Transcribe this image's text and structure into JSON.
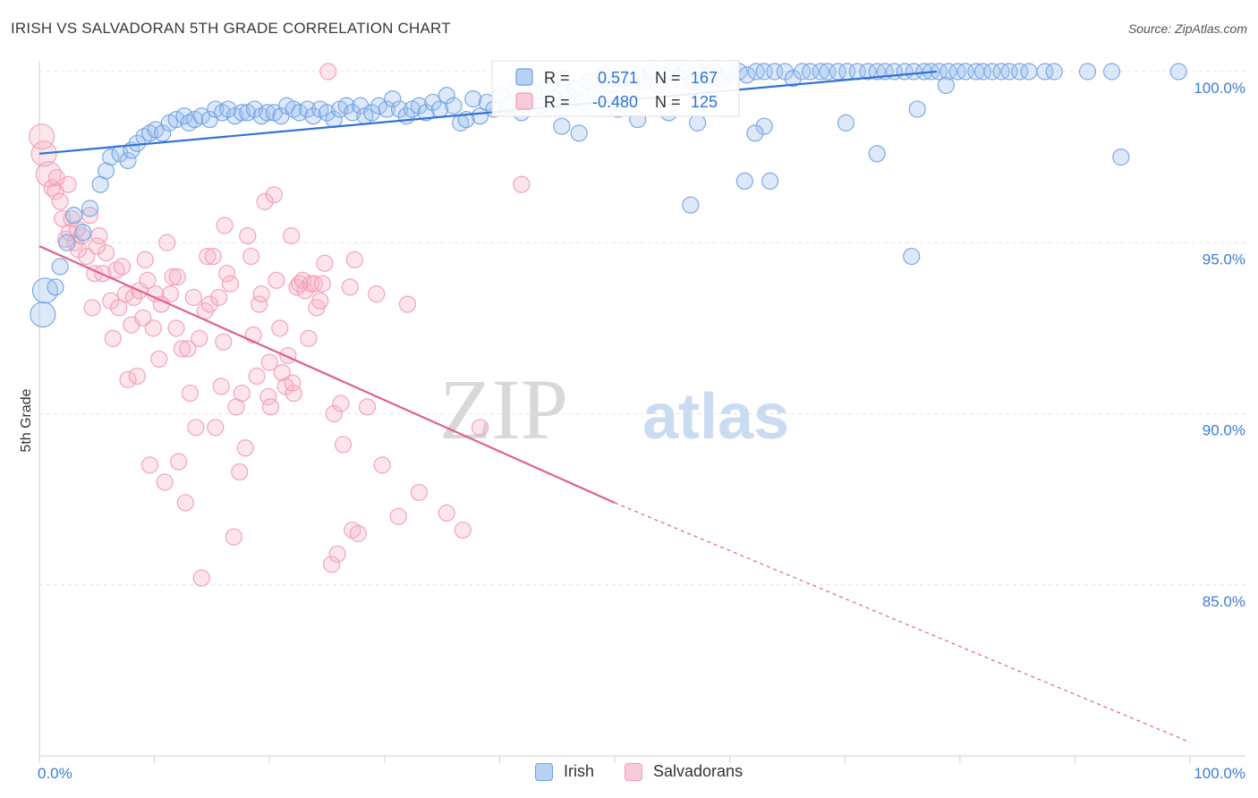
{
  "title": "IRISH VS SALVADORAN 5TH GRADE CORRELATION CHART",
  "source": "Source: ZipAtlas.com",
  "watermark": {
    "zip": "ZIP",
    "atlas": "atlas"
  },
  "chart_data": {
    "type": "scatter",
    "ylabel": "5th Grade",
    "xlim": [
      0,
      100
    ],
    "ylim": [
      80,
      100
    ],
    "x_tick_labels": [
      "0.0%",
      "100.0%"
    ],
    "y_ticks": [
      {
        "value": 100,
        "label": "100.0%"
      },
      {
        "value": 95,
        "label": "95.0%"
      },
      {
        "value": 90,
        "label": "90.0%"
      },
      {
        "value": 85,
        "label": "85.0%"
      }
    ],
    "grid": true,
    "legend_placement": "top-center",
    "series": [
      {
        "name": "Irish",
        "color": "#6fa1e3",
        "line_color": "#2f72d6",
        "R": "0.571",
        "N": "167",
        "trend": {
          "x0": 0,
          "y0": 97.6,
          "x1": 78,
          "y1": 100.0,
          "dashed_to": null
        },
        "points": [
          [
            0.3,
            92.9
          ],
          [
            0.5,
            93.6
          ],
          [
            1.4,
            93.7
          ],
          [
            1.8,
            94.3
          ],
          [
            2.4,
            95.0
          ],
          [
            3.0,
            95.8
          ],
          [
            3.8,
            95.3
          ],
          [
            4.4,
            96.0
          ],
          [
            5.3,
            96.7
          ],
          [
            5.8,
            97.1
          ],
          [
            6.2,
            97.5
          ],
          [
            7.0,
            97.6
          ],
          [
            7.7,
            97.4
          ],
          [
            8.0,
            97.7
          ],
          [
            8.5,
            97.9
          ],
          [
            9.1,
            98.1
          ],
          [
            9.6,
            98.2
          ],
          [
            10.1,
            98.3
          ],
          [
            10.7,
            98.2
          ],
          [
            11.3,
            98.5
          ],
          [
            11.9,
            98.6
          ],
          [
            12.6,
            98.7
          ],
          [
            13.0,
            98.5
          ],
          [
            13.5,
            98.6
          ],
          [
            14.1,
            98.7
          ],
          [
            14.8,
            98.6
          ],
          [
            15.3,
            98.9
          ],
          [
            15.9,
            98.8
          ],
          [
            16.4,
            98.9
          ],
          [
            17.0,
            98.7
          ],
          [
            17.6,
            98.8
          ],
          [
            18.1,
            98.8
          ],
          [
            18.7,
            98.9
          ],
          [
            19.3,
            98.7
          ],
          [
            19.8,
            98.8
          ],
          [
            20.4,
            98.8
          ],
          [
            21.0,
            98.7
          ],
          [
            21.5,
            99.0
          ],
          [
            22.1,
            98.9
          ],
          [
            22.6,
            98.8
          ],
          [
            23.3,
            98.9
          ],
          [
            23.8,
            98.7
          ],
          [
            24.4,
            98.9
          ],
          [
            25.0,
            98.8
          ],
          [
            25.6,
            98.6
          ],
          [
            26.1,
            98.9
          ],
          [
            26.7,
            99.0
          ],
          [
            27.2,
            98.8
          ],
          [
            27.9,
            99.0
          ],
          [
            28.3,
            98.7
          ],
          [
            28.9,
            98.8
          ],
          [
            29.5,
            99.0
          ],
          [
            30.2,
            98.9
          ],
          [
            30.7,
            99.2
          ],
          [
            31.3,
            98.9
          ],
          [
            31.9,
            98.7
          ],
          [
            32.4,
            98.9
          ],
          [
            33.0,
            99.0
          ],
          [
            33.6,
            98.8
          ],
          [
            34.2,
            99.1
          ],
          [
            34.8,
            98.9
          ],
          [
            35.4,
            99.3
          ],
          [
            36.0,
            99.0
          ],
          [
            36.6,
            98.5
          ],
          [
            37.1,
            98.6
          ],
          [
            37.7,
            99.2
          ],
          [
            38.3,
            98.7
          ],
          [
            38.9,
            99.1
          ],
          [
            39.5,
            98.9
          ],
          [
            40.1,
            99.3
          ],
          [
            40.7,
            99.0
          ],
          [
            41.3,
            99.5
          ],
          [
            41.9,
            98.8
          ],
          [
            42.4,
            99.1
          ],
          [
            43.0,
            99.4
          ],
          [
            43.6,
            99.0
          ],
          [
            44.2,
            99.6
          ],
          [
            44.8,
            99.2
          ],
          [
            45.4,
            99.8
          ],
          [
            46.0,
            99.3
          ],
          [
            46.6,
            99.5
          ],
          [
            47.2,
            99.1
          ],
          [
            47.8,
            99.7
          ],
          [
            48.4,
            99.4
          ],
          [
            49.0,
            99.9
          ],
          [
            49.6,
            99.6
          ],
          [
            50.2,
            99.2
          ],
          [
            50.8,
            99.8
          ],
          [
            51.4,
            99.5
          ],
          [
            52.0,
            99.9
          ],
          [
            52.6,
            99.7
          ],
          [
            53.2,
            100.0
          ],
          [
            53.8,
            99.6
          ],
          [
            54.4,
            99.9
          ],
          [
            55.0,
            100.0
          ],
          [
            55.6,
            99.8
          ],
          [
            56.2,
            100.0
          ],
          [
            56.8,
            99.7
          ],
          [
            57.4,
            100.0
          ],
          [
            58.0,
            99.9
          ],
          [
            58.6,
            100.0
          ],
          [
            59.3,
            99.8
          ],
          [
            60.0,
            100.0
          ],
          [
            60.8,
            100.0
          ],
          [
            61.5,
            99.9
          ],
          [
            62.3,
            100.0
          ],
          [
            63.0,
            100.0
          ],
          [
            63.9,
            100.0
          ],
          [
            64.8,
            100.0
          ],
          [
            65.5,
            99.8
          ],
          [
            66.3,
            100.0
          ],
          [
            67.0,
            100.0
          ],
          [
            67.9,
            100.0
          ],
          [
            68.5,
            100.0
          ],
          [
            69.4,
            100.0
          ],
          [
            70.2,
            100.0
          ],
          [
            71.1,
            100.0
          ],
          [
            72.0,
            100.0
          ],
          [
            72.8,
            100.0
          ],
          [
            73.5,
            100.0
          ],
          [
            74.3,
            100.0
          ],
          [
            75.2,
            100.0
          ],
          [
            76.0,
            100.0
          ],
          [
            76.9,
            100.0
          ],
          [
            77.5,
            100.0
          ],
          [
            78.2,
            100.0
          ],
          [
            79.0,
            100.0
          ],
          [
            79.8,
            100.0
          ],
          [
            80.5,
            100.0
          ],
          [
            81.4,
            100.0
          ],
          [
            82.0,
            100.0
          ],
          [
            82.8,
            100.0
          ],
          [
            83.6,
            100.0
          ],
          [
            84.3,
            100.0
          ],
          [
            85.2,
            100.0
          ],
          [
            86.0,
            100.0
          ],
          [
            87.4,
            100.0
          ],
          [
            88.2,
            100.0
          ],
          [
            91.1,
            100.0
          ],
          [
            93.2,
            100.0
          ],
          [
            99.0,
            100.0
          ],
          [
            78.8,
            99.6
          ],
          [
            76.3,
            98.9
          ],
          [
            70.1,
            98.5
          ],
          [
            63.0,
            98.4
          ],
          [
            62.2,
            98.2
          ],
          [
            58.0,
            99.3
          ],
          [
            57.2,
            98.5
          ],
          [
            54.7,
            98.8
          ],
          [
            52.0,
            98.6
          ],
          [
            50.3,
            98.9
          ],
          [
            46.9,
            98.2
          ],
          [
            45.4,
            98.4
          ],
          [
            63.5,
            96.8
          ],
          [
            72.8,
            97.6
          ],
          [
            56.6,
            96.1
          ],
          [
            61.3,
            96.8
          ],
          [
            94.0,
            97.5
          ],
          [
            75.8,
            94.6
          ]
        ]
      },
      {
        "name": "Salvadorans",
        "color": "#f29bb5",
        "line_color": "#e0608f",
        "R": "-0.480",
        "N": "125",
        "trend": {
          "x0": 0,
          "y0": 94.9,
          "x1": 50,
          "y1": 87.4,
          "dashed_to": [
            100,
            80.4
          ]
        },
        "points": [
          [
            0.2,
            98.1
          ],
          [
            0.4,
            97.6
          ],
          [
            0.8,
            97.0
          ],
          [
            1.1,
            96.6
          ],
          [
            1.4,
            96.5
          ],
          [
            1.8,
            96.2
          ],
          [
            2.0,
            95.7
          ],
          [
            2.3,
            95.1
          ],
          [
            2.6,
            95.3
          ],
          [
            2.8,
            95.7
          ],
          [
            3.1,
            95.0
          ],
          [
            3.4,
            94.8
          ],
          [
            3.7,
            95.2
          ],
          [
            4.1,
            94.6
          ],
          [
            4.4,
            95.8
          ],
          [
            4.6,
            93.1
          ],
          [
            4.8,
            94.1
          ],
          [
            5.2,
            95.2
          ],
          [
            5.5,
            94.1
          ],
          [
            5.8,
            94.7
          ],
          [
            6.2,
            93.3
          ],
          [
            6.4,
            92.2
          ],
          [
            6.7,
            94.2
          ],
          [
            6.9,
            93.1
          ],
          [
            7.2,
            94.3
          ],
          [
            7.5,
            93.5
          ],
          [
            7.7,
            91.0
          ],
          [
            8.0,
            92.6
          ],
          [
            8.2,
            93.4
          ],
          [
            8.5,
            91.1
          ],
          [
            8.7,
            93.6
          ],
          [
            9.0,
            92.8
          ],
          [
            9.2,
            94.5
          ],
          [
            9.4,
            93.9
          ],
          [
            9.6,
            88.5
          ],
          [
            9.9,
            92.5
          ],
          [
            10.1,
            93.5
          ],
          [
            10.4,
            91.6
          ],
          [
            10.6,
            93.2
          ],
          [
            10.9,
            88.0
          ],
          [
            11.1,
            95.0
          ],
          [
            11.4,
            93.5
          ],
          [
            11.6,
            94.0
          ],
          [
            11.9,
            92.5
          ],
          [
            12.1,
            88.6
          ],
          [
            12.4,
            91.9
          ],
          [
            12.7,
            87.4
          ],
          [
            12.9,
            91.9
          ],
          [
            13.1,
            90.6
          ],
          [
            13.4,
            93.4
          ],
          [
            13.6,
            89.6
          ],
          [
            13.9,
            92.2
          ],
          [
            14.1,
            85.2
          ],
          [
            14.4,
            93.0
          ],
          [
            14.6,
            94.6
          ],
          [
            14.8,
            93.2
          ],
          [
            15.1,
            94.6
          ],
          [
            15.3,
            89.6
          ],
          [
            15.6,
            93.4
          ],
          [
            15.8,
            90.8
          ],
          [
            16.1,
            95.5
          ],
          [
            16.3,
            94.1
          ],
          [
            16.6,
            93.8
          ],
          [
            16.9,
            86.4
          ],
          [
            17.1,
            90.2
          ],
          [
            17.4,
            88.3
          ],
          [
            17.6,
            90.6
          ],
          [
            17.9,
            89.0
          ],
          [
            18.1,
            95.2
          ],
          [
            18.4,
            94.6
          ],
          [
            18.6,
            92.3
          ],
          [
            18.9,
            91.1
          ],
          [
            19.1,
            93.2
          ],
          [
            19.3,
            93.5
          ],
          [
            19.6,
            96.2
          ],
          [
            19.9,
            90.5
          ],
          [
            20.1,
            90.2
          ],
          [
            20.4,
            96.4
          ],
          [
            20.6,
            93.9
          ],
          [
            20.9,
            92.5
          ],
          [
            21.1,
            91.2
          ],
          [
            21.4,
            90.8
          ],
          [
            21.6,
            91.7
          ],
          [
            21.9,
            95.2
          ],
          [
            22.1,
            90.6
          ],
          [
            22.4,
            93.7
          ],
          [
            22.6,
            93.8
          ],
          [
            22.9,
            93.9
          ],
          [
            23.1,
            93.6
          ],
          [
            23.4,
            92.2
          ],
          [
            23.6,
            93.8
          ],
          [
            23.9,
            93.8
          ],
          [
            24.1,
            93.1
          ],
          [
            24.4,
            93.3
          ],
          [
            24.6,
            93.8
          ],
          [
            24.8,
            94.4
          ],
          [
            25.1,
            100.0
          ],
          [
            25.4,
            85.6
          ],
          [
            25.6,
            90.0
          ],
          [
            25.9,
            85.9
          ],
          [
            26.2,
            90.3
          ],
          [
            26.4,
            89.1
          ],
          [
            27.0,
            93.7
          ],
          [
            27.2,
            86.6
          ],
          [
            27.4,
            94.5
          ],
          [
            27.7,
            86.5
          ],
          [
            28.5,
            90.2
          ],
          [
            29.3,
            93.5
          ],
          [
            29.8,
            88.5
          ],
          [
            31.2,
            87.0
          ],
          [
            32.0,
            93.2
          ],
          [
            33.0,
            87.7
          ],
          [
            35.4,
            87.1
          ],
          [
            36.8,
            86.6
          ],
          [
            38.3,
            89.6
          ],
          [
            41.9,
            96.7
          ],
          [
            2.5,
            96.7
          ],
          [
            1.5,
            96.9
          ],
          [
            3.3,
            95.4
          ],
          [
            5.0,
            94.9
          ],
          [
            12.0,
            94.0
          ],
          [
            16.0,
            92.1
          ],
          [
            20.0,
            91.5
          ],
          [
            22.0,
            90.9
          ]
        ]
      }
    ]
  },
  "legend_bottom": [
    {
      "label": "Irish"
    },
    {
      "label": "Salvadorans"
    }
  ],
  "legend_top": {
    "r_label": "R = ",
    "n_label": "N = "
  }
}
